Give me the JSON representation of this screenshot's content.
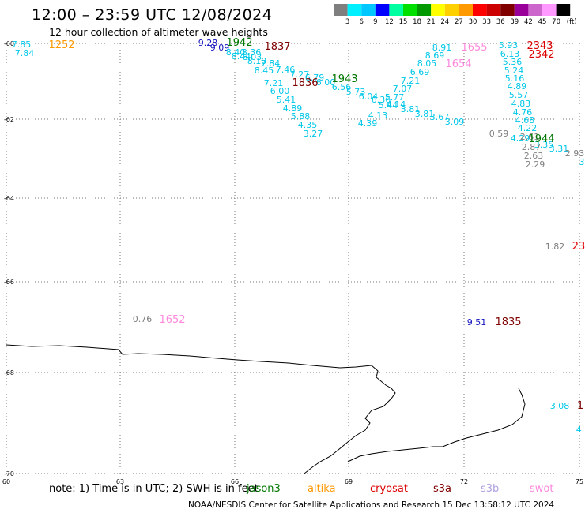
{
  "title": "12:00 – 23:59 UTC 12/08/2024",
  "subtitle": "12 hour collection of altimeter wave heights",
  "legend": {
    "labels": [
      "3",
      "6",
      "9",
      "12",
      "15",
      "18",
      "21",
      "24",
      "27",
      "30",
      "33",
      "36",
      "39",
      "42",
      "45",
      "70"
    ],
    "unit": "(ft)",
    "colors": [
      "#7f7f7f",
      "#00f0ff",
      "#00c8ff",
      "#0000ff",
      "#00ffa0",
      "#00e000",
      "#009900",
      "#ffff00",
      "#ffd000",
      "#ff9900",
      "#ff0000",
      "#cc0000",
      "#800000",
      "#990099",
      "#cc66cc",
      "#ff99ff",
      "#000000"
    ]
  },
  "axes": {
    "lat_labels": [
      "-60",
      "-62",
      "-64",
      "-66",
      "-68",
      "-70"
    ],
    "lat_values": [
      -60,
      -62,
      -64,
      -66,
      -68,
      -70
    ],
    "lon_labels": [
      "60",
      "63",
      "66",
      "69",
      "72",
      "75"
    ],
    "lon_values": [
      60,
      63,
      66,
      69,
      72,
      75
    ]
  },
  "wave_heights": [
    {
      "text": "7.85",
      "color": "#00c8e8"
    },
    {
      "text": "7.84",
      "color": "#00c8e8"
    },
    {
      "text": "9.28",
      "color": "#1010c0"
    },
    {
      "text": "9.09",
      "color": "#1010c0"
    },
    {
      "text": "8.40",
      "color": "#00c8e8"
    },
    {
      "text": "8.36",
      "color": "#00c8e8"
    },
    {
      "text": "8.44",
      "color": "#00c8e8"
    },
    {
      "text": "8.03",
      "color": "#00c8e8"
    },
    {
      "text": "8.10",
      "color": "#00c8e8"
    },
    {
      "text": "7.84",
      "color": "#00c8e8"
    },
    {
      "text": "8.45",
      "color": "#00c8e8"
    },
    {
      "text": "7.46",
      "color": "#00c8e8"
    },
    {
      "text": "7.27",
      "color": "#00c8e8"
    },
    {
      "text": "7.21",
      "color": "#00c8e8"
    },
    {
      "text": "6.79",
      "color": "#00c8e8"
    },
    {
      "text": "6.00",
      "color": "#00c8e8"
    },
    {
      "text": "6.00",
      "color": "#00c8e8"
    },
    {
      "text": "6.56",
      "color": "#00c8e8"
    },
    {
      "text": "5.73",
      "color": "#00c8e8"
    },
    {
      "text": "5.41",
      "color": "#00c8e8"
    },
    {
      "text": "4.89",
      "color": "#00c8e8"
    },
    {
      "text": "5.88",
      "color": "#00c8e8"
    },
    {
      "text": "4.35",
      "color": "#00c8e8"
    },
    {
      "text": "3.27",
      "color": "#00c8e8"
    },
    {
      "text": "6.04",
      "color": "#00c8e8"
    },
    {
      "text": "6.36",
      "color": "#00c8e8"
    },
    {
      "text": "5.77",
      "color": "#00c8e8"
    },
    {
      "text": "5.44",
      "color": "#00c8e8"
    },
    {
      "text": "4.14",
      "color": "#00c8e8"
    },
    {
      "text": "4.13",
      "color": "#00c8e8"
    },
    {
      "text": "4.39",
      "color": "#00c8e8"
    },
    {
      "text": "7.07",
      "color": "#00c8e8"
    },
    {
      "text": "7.21",
      "color": "#00c8e8"
    },
    {
      "text": "6.69",
      "color": "#00c8e8"
    },
    {
      "text": "8.05",
      "color": "#00c8e8"
    },
    {
      "text": "8.69",
      "color": "#00c8e8"
    },
    {
      "text": "8.91",
      "color": "#00c8e8"
    },
    {
      "text": "3.81",
      "color": "#00c8e8"
    },
    {
      "text": "3.81",
      "color": "#00c8e8"
    },
    {
      "text": "3.67",
      "color": "#00c8e8"
    },
    {
      "text": "3.09",
      "color": "#00c8e8"
    },
    {
      "text": "5.93",
      "color": "#00c8e8"
    },
    {
      "text": "6.13",
      "color": "#00c8e8"
    },
    {
      "text": "5.36",
      "color": "#00c8e8"
    },
    {
      "text": "5.24",
      "color": "#00c8e8"
    },
    {
      "text": "5.16",
      "color": "#00c8e8"
    },
    {
      "text": "4.89",
      "color": "#00c8e8"
    },
    {
      "text": "5.57",
      "color": "#00c8e8"
    },
    {
      "text": "4.83",
      "color": "#00c8e8"
    },
    {
      "text": "4.76",
      "color": "#00c8e8"
    },
    {
      "text": "4.68",
      "color": "#00c8e8"
    },
    {
      "text": "4.22",
      "color": "#00c8e8"
    },
    {
      "text": "4.29",
      "color": "#00c8e8"
    },
    {
      "text": "3.35",
      "color": "#00c8e8"
    },
    {
      "text": "3.31",
      "color": "#00c8e8"
    },
    {
      "text": "0.59",
      "color": "#7f7f7f"
    },
    {
      "text": "2.61",
      "color": "#7f7f7f"
    },
    {
      "text": "2.87",
      "color": "#7f7f7f"
    },
    {
      "text": "2.63",
      "color": "#7f7f7f"
    },
    {
      "text": "2.29",
      "color": "#7f7f7f"
    },
    {
      "text": "2.93",
      "color": "#7f7f7f"
    },
    {
      "text": "3",
      "color": "#00c8e8"
    },
    {
      "text": "1.82",
      "color": "#7f7f7f"
    },
    {
      "text": "0.76",
      "color": "#7f7f7f"
    },
    {
      "text": "9.51",
      "color": "#1010c0"
    },
    {
      "text": "3.08",
      "color": "#00c8e8"
    },
    {
      "text": "4.",
      "color": "#00c8e8"
    }
  ],
  "pass_times": [
    {
      "text": "1252",
      "color": "#ff9900"
    },
    {
      "text": "1942",
      "color": "#007700"
    },
    {
      "text": "1837",
      "color": "#800000"
    },
    {
      "text": "1836",
      "color": "#800000"
    },
    {
      "text": "1943",
      "color": "#007700"
    },
    {
      "text": "1655",
      "color": "#ff88dd"
    },
    {
      "text": "1654",
      "color": "#ff88dd"
    },
    {
      "text": "2343",
      "color": "#dd0000"
    },
    {
      "text": "2342",
      "color": "#dd0000"
    },
    {
      "text": "1944",
      "color": "#007700"
    },
    {
      "text": "23",
      "color": "#dd0000"
    },
    {
      "text": "1652",
      "color": "#ff88dd"
    },
    {
      "text": "1835",
      "color": "#800000"
    },
    {
      "text": "1",
      "color": "#800000"
    }
  ],
  "note": {
    "prefix": "note: 1) Time is in UTC; 2) SWH is in feet",
    "satellites": [
      {
        "name": "jason3",
        "color": "#007700"
      },
      {
        "name": "altika",
        "color": "#ff9900"
      },
      {
        "name": "cryosat",
        "color": "#dd0000"
      },
      {
        "name": "s3a",
        "color": "#800000"
      },
      {
        "name": "s3b",
        "color": "#b0a0e0"
      },
      {
        "name": "swot",
        "color": "#ff88dd"
      }
    ]
  },
  "footer": "NOAA/NESDIS Center for Satellite Applications and Research    15 Dec 13:58:12 UTC 2024"
}
